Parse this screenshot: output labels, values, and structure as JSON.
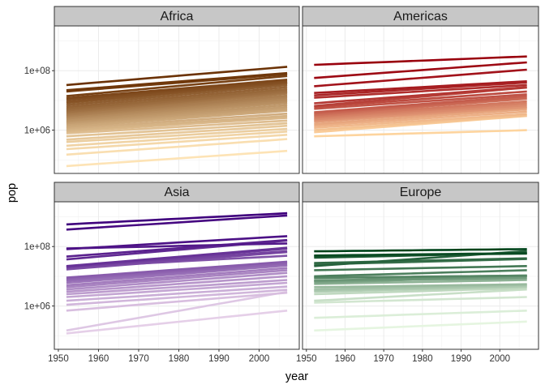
{
  "chart_data": {
    "type": "line",
    "title": "",
    "xlabel": "year",
    "ylabel": "pop",
    "x": [
      1952,
      1957,
      1962,
      1967,
      1972,
      1977,
      1982,
      1987,
      1992,
      1997,
      2002,
      2007
    ],
    "xlim": [
      1949,
      2010
    ],
    "ylim": [
      35000,
      3200000000
    ],
    "yscale": "log10",
    "x_ticks": [
      1950,
      1960,
      1970,
      1980,
      1990,
      2000
    ],
    "x_tick_labels": [
      "1950",
      "1960",
      "1970",
      "1980",
      "1990",
      "2000"
    ],
    "y_ticks": [
      1000000,
      100000000
    ],
    "y_tick_labels": [
      "1e+06",
      "1e+08"
    ],
    "grid": true,
    "legend": "none",
    "facets": [
      {
        "name": "Africa",
        "color_dark": "#6b3205",
        "color_light": "#fde3b5",
        "series": [
          {
            "start": 33000000,
            "end": 135000000
          },
          {
            "start": 22000000,
            "end": 83000000
          },
          {
            "start": 20000000,
            "end": 76000000
          },
          {
            "start": 14000000,
            "end": 66000000
          },
          {
            "start": 12000000,
            "end": 50000000
          },
          {
            "start": 10500000,
            "end": 44000000
          },
          {
            "start": 9000000,
            "end": 40000000
          },
          {
            "start": 8200000,
            "end": 38000000
          },
          {
            "start": 7000000,
            "end": 33000000
          },
          {
            "start": 6000000,
            "end": 28000000
          },
          {
            "start": 5200000,
            "end": 24000000
          },
          {
            "start": 4600000,
            "end": 21000000
          },
          {
            "start": 4100000,
            "end": 19000000
          },
          {
            "start": 3700000,
            "end": 17000000
          },
          {
            "start": 3300000,
            "end": 14500000
          },
          {
            "start": 3000000,
            "end": 12700000
          },
          {
            "start": 2700000,
            "end": 11000000
          },
          {
            "start": 2400000,
            "end": 9500000
          },
          {
            "start": 2100000,
            "end": 8300000
          },
          {
            "start": 1900000,
            "end": 7000000
          },
          {
            "start": 1700000,
            "end": 6000000
          },
          {
            "start": 1500000,
            "end": 5200000
          },
          {
            "start": 1300000,
            "end": 4500000
          },
          {
            "start": 1150000,
            "end": 3600000
          },
          {
            "start": 1000000,
            "end": 3000000
          },
          {
            "start": 900000,
            "end": 2600000
          },
          {
            "start": 780000,
            "end": 2100000
          },
          {
            "start": 620000,
            "end": 1700000
          },
          {
            "start": 480000,
            "end": 1400000
          },
          {
            "start": 400000,
            "end": 1100000
          },
          {
            "start": 300000,
            "end": 900000
          },
          {
            "start": 230000,
            "end": 700000
          },
          {
            "start": 150000,
            "end": 500000
          },
          {
            "start": 62000,
            "end": 200000
          }
        ]
      },
      {
        "name": "Americas",
        "color_dark": "#99000d",
        "color_light": "#fdd49e",
        "series": [
          {
            "start": 157000000,
            "end": 301000000
          },
          {
            "start": 57000000,
            "end": 190000000
          },
          {
            "start": 30000000,
            "end": 108000000
          },
          {
            "start": 17800000,
            "end": 44000000
          },
          {
            "start": 14800000,
            "end": 40000000
          },
          {
            "start": 12300000,
            "end": 33000000
          },
          {
            "start": 8000000,
            "end": 28000000
          },
          {
            "start": 6500000,
            "end": 27000000
          },
          {
            "start": 6000000,
            "end": 20000000
          },
          {
            "start": 5200000,
            "end": 16000000
          },
          {
            "start": 4000000,
            "end": 14000000
          },
          {
            "start": 3600000,
            "end": 12500000
          },
          {
            "start": 3200000,
            "end": 11400000
          },
          {
            "start": 2900000,
            "end": 9300000
          },
          {
            "start": 2600000,
            "end": 8000000
          },
          {
            "start": 2300000,
            "end": 6900000
          },
          {
            "start": 2100000,
            "end": 6000000
          },
          {
            "start": 1900000,
            "end": 5700000
          },
          {
            "start": 1600000,
            "end": 5000000
          },
          {
            "start": 1400000,
            "end": 4200000
          },
          {
            "start": 1200000,
            "end": 3500000
          },
          {
            "start": 1000000,
            "end": 3100000
          },
          {
            "start": 850000,
            "end": 3000000
          },
          {
            "start": 620000,
            "end": 1000000
          }
        ]
      },
      {
        "name": "Asia",
        "color_dark": "#3f007d",
        "color_light": "#e5cfe8",
        "series": [
          {
            "start": 556000000,
            "end": 1318000000
          },
          {
            "start": 372000000,
            "end": 1110000000
          },
          {
            "start": 82000000,
            "end": 224000000
          },
          {
            "start": 86000000,
            "end": 127000000
          },
          {
            "start": 46000000,
            "end": 165000000
          },
          {
            "start": 37000000,
            "end": 159000000
          },
          {
            "start": 22000000,
            "end": 91000000
          },
          {
            "start": 21000000,
            "end": 85000000
          },
          {
            "start": 20000000,
            "end": 70000000
          },
          {
            "start": 17000000,
            "end": 65000000
          },
          {
            "start": 20000000,
            "end": 49000000
          },
          {
            "start": 9000000,
            "end": 31000000
          },
          {
            "start": 8000000,
            "end": 27000000
          },
          {
            "start": 7000000,
            "end": 24000000
          },
          {
            "start": 6000000,
            "end": 23000000
          },
          {
            "start": 5000000,
            "end": 19000000
          },
          {
            "start": 4300000,
            "end": 16000000
          },
          {
            "start": 3600000,
            "end": 13000000
          },
          {
            "start": 3000000,
            "end": 10000000
          },
          {
            "start": 2500000,
            "end": 7500000
          },
          {
            "start": 2000000,
            "end": 6000000
          },
          {
            "start": 1500000,
            "end": 4500000
          },
          {
            "start": 1100000,
            "end": 3500000
          },
          {
            "start": 700000,
            "end": 2800000
          },
          {
            "start": 150000,
            "end": 3000000
          },
          {
            "start": 120000,
            "end": 700000
          }
        ]
      },
      {
        "name": "Europe",
        "color_dark": "#00441b",
        "color_light": "#e5f5e0",
        "series": [
          {
            "start": 69000000,
            "end": 82000000
          },
          {
            "start": 50000000,
            "end": 60000000
          },
          {
            "start": 47000000,
            "end": 58000000
          },
          {
            "start": 42000000,
            "end": 61000000
          },
          {
            "start": 22000000,
            "end": 71000000
          },
          {
            "start": 28000000,
            "end": 40000000
          },
          {
            "start": 25000000,
            "end": 38000000
          },
          {
            "start": 16000000,
            "end": 22000000
          },
          {
            "start": 10000000,
            "end": 16000000
          },
          {
            "start": 9000000,
            "end": 10500000
          },
          {
            "start": 8700000,
            "end": 10600000
          },
          {
            "start": 7100000,
            "end": 10300000
          },
          {
            "start": 6900000,
            "end": 9000000
          },
          {
            "start": 6000000,
            "end": 10000000
          },
          {
            "start": 7300000,
            "end": 8200000
          },
          {
            "start": 5500000,
            "end": 7500000
          },
          {
            "start": 4300000,
            "end": 5400000
          },
          {
            "start": 3600000,
            "end": 5200000
          },
          {
            "start": 3300000,
            "end": 4600000
          },
          {
            "start": 3000000,
            "end": 4500000
          },
          {
            "start": 2500000,
            "end": 4000000
          },
          {
            "start": 1500000,
            "end": 3600000
          },
          {
            "start": 1300000,
            "end": 2000000
          },
          {
            "start": 400000,
            "end": 700000
          },
          {
            "start": 150000,
            "end": 300000
          }
        ]
      }
    ]
  }
}
